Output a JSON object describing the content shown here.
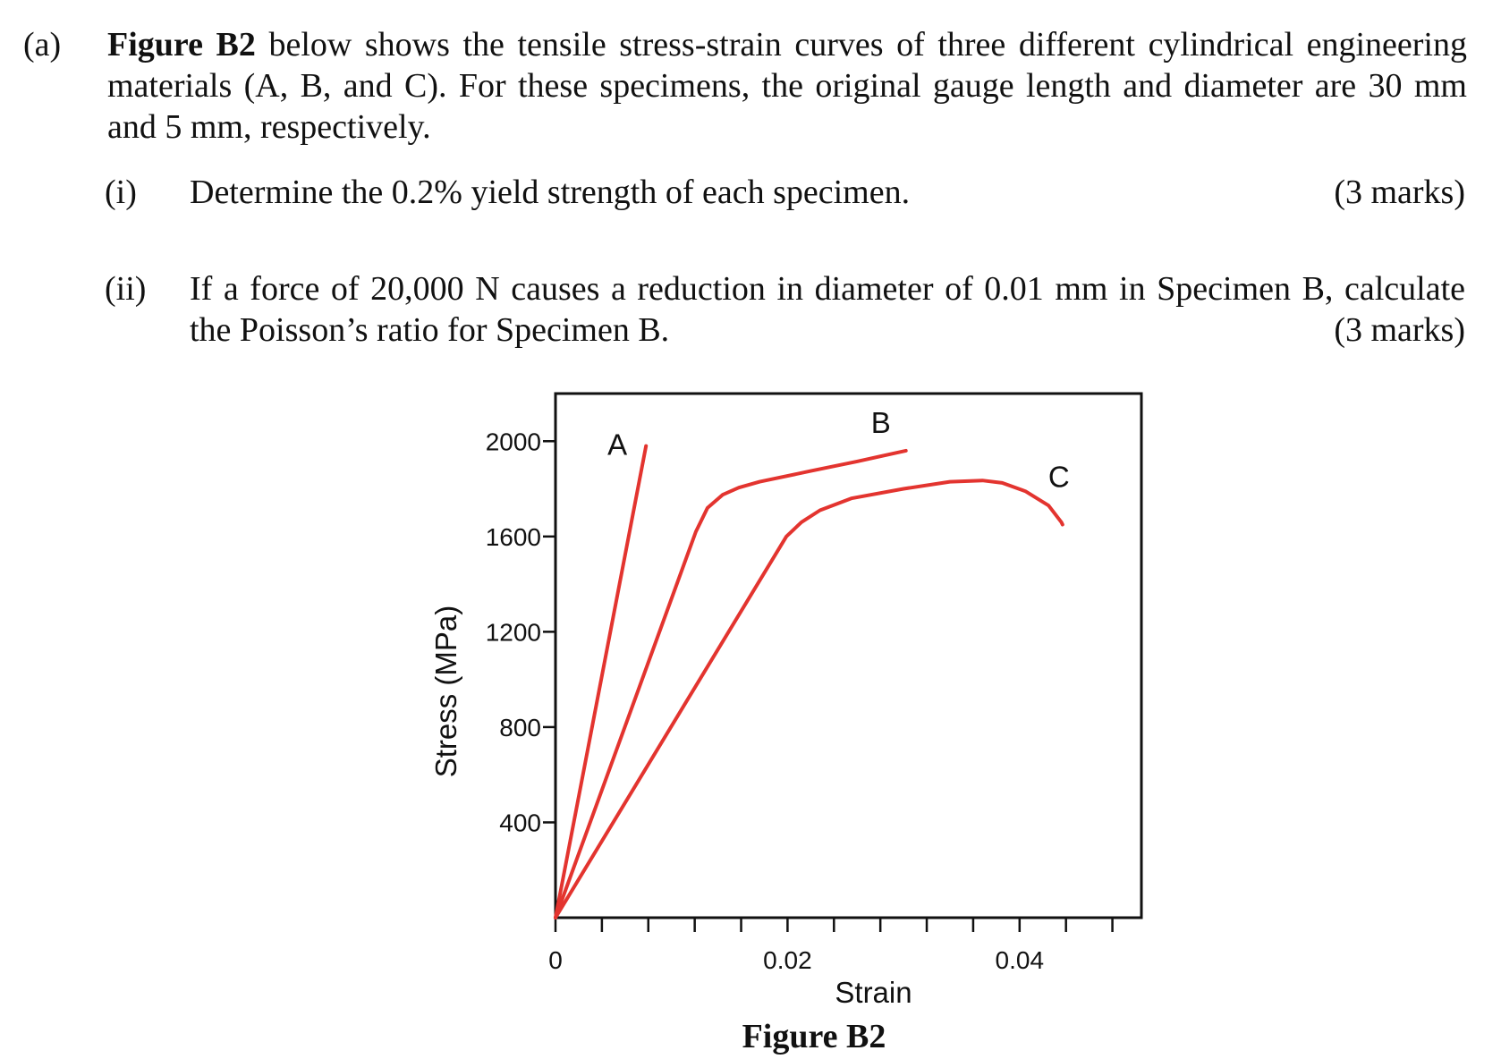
{
  "question": {
    "label": "(a)",
    "figure_ref": "Figure B2",
    "intro_rest": " below shows the tensile stress-strain curves of three different cylindrical engineering materials (A, B, and C). For these specimens, the original gauge length and diameter are 30 mm and 5 mm, respectively.",
    "parts": [
      {
        "num": "(i)",
        "text": "Determine the 0.2% yield strength of each specimen.",
        "marks": "(3 marks)"
      },
      {
        "num": "(ii)",
        "text": "If a force of 20,000 N causes a reduction in diameter of 0.01 mm in Specimen B, calculate the Poisson’s ratio for Specimen B.",
        "marks": "(3 marks)"
      }
    ]
  },
  "caption": "Figure B2",
  "chart_data": {
    "type": "line",
    "xlabel": "Strain",
    "ylabel": "Stress (MPa)",
    "xlim": [
      0,
      0.0505
    ],
    "ylim": [
      0,
      2200
    ],
    "x_ticks": [
      0,
      0.02,
      0.04
    ],
    "x_tick_labels": [
      "0",
      "0.02",
      "0.04"
    ],
    "x_minor_ticks": [
      0.004,
      0.008,
      0.012,
      0.016,
      0.024,
      0.028,
      0.032,
      0.036,
      0.044,
      0.048
    ],
    "y_ticks": [
      400,
      800,
      1200,
      1600,
      2000
    ],
    "y_tick_labels": [
      "400",
      "800",
      "1200",
      "1600",
      "2000"
    ],
    "grid": false,
    "line_color": "#e3342f",
    "series": [
      {
        "name": "A",
        "x": [
          0,
          0.0078
        ],
        "y": [
          0,
          1980
        ]
      },
      {
        "name": "B",
        "x": [
          0,
          0.0121,
          0.0131,
          0.0144,
          0.0158,
          0.0176,
          0.022,
          0.026,
          0.0302
        ],
        "y": [
          0,
          1620,
          1720,
          1775,
          1805,
          1830,
          1875,
          1915,
          1960
        ]
      },
      {
        "name": "C",
        "x": [
          0,
          0.0199,
          0.0212,
          0.0228,
          0.0255,
          0.03,
          0.034,
          0.0368,
          0.0385,
          0.0405,
          0.0425,
          0.0436,
          0.0437
        ],
        "y": [
          0,
          1600,
          1660,
          1710,
          1760,
          1800,
          1830,
          1835,
          1825,
          1790,
          1730,
          1660,
          1650
        ]
      }
    ]
  }
}
